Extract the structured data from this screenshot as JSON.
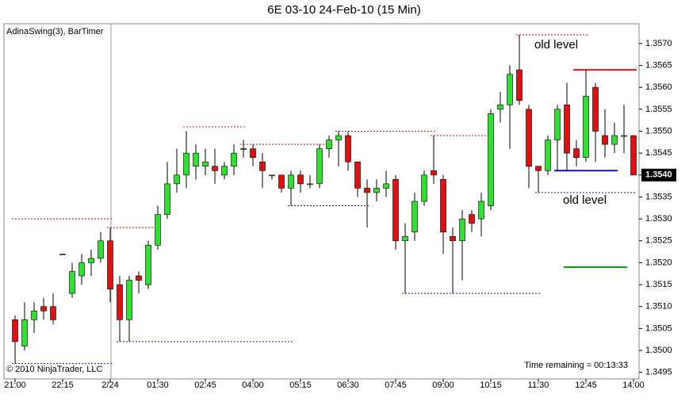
{
  "chart_data": {
    "type": "candlestick",
    "title": "6E 03-10  24-Feb-10 (15 Min)",
    "indicator_label": "AdinaSwing(3), BarTimer",
    "copyright": "© 2010 NinjaTrader, LLC",
    "timer": "Time remaining = 00:13:33",
    "categories": [
      "21:00",
      null,
      null,
      null,
      null,
      "22:15",
      null,
      null,
      null,
      null,
      "2/24",
      null,
      null,
      null,
      null,
      "01:30",
      null,
      null,
      null,
      null,
      "02:45",
      null,
      null,
      null,
      null,
      "04:00",
      null,
      null,
      null,
      null,
      "05:15",
      null,
      null,
      null,
      null,
      "06:30",
      null,
      null,
      null,
      null,
      "07:45",
      null,
      null,
      null,
      null,
      "09:00",
      null,
      null,
      null,
      null,
      "10:15",
      null,
      null,
      null,
      null,
      "11:30",
      null,
      null,
      null,
      null,
      "12:45",
      null,
      null,
      null,
      null,
      "14:00"
    ],
    "open": [
      1.3507,
      1.3501,
      1.3507,
      1.351,
      1.351,
      1.3522,
      1.3513,
      1.3517,
      1.352,
      1.3521,
      1.3525,
      1.3515,
      1.3507,
      1.3517,
      1.3515,
      1.3524,
      1.3531,
      1.3538,
      1.354,
      1.3542,
      1.3542,
      1.3542,
      1.354,
      1.3542,
      1.3546,
      1.3546,
      1.3543,
      1.354,
      1.354,
      1.3537,
      1.354,
      1.3538,
      1.3538,
      1.3546,
      1.3548,
      1.3549,
      1.3543,
      1.3537,
      1.3536,
      1.3537,
      1.3539,
      1.3525,
      1.3527,
      1.3534,
      1.3541,
      1.3539,
      1.3526,
      1.3525,
      1.3531,
      1.353,
      1.3533,
      1.3555,
      1.3556,
      1.3564,
      1.3555,
      1.3542,
      1.3541,
      1.3548,
      1.3556,
      1.3546,
      1.3544,
      1.356,
      1.3549,
      1.3547,
      1.3549,
      1.3549
    ],
    "high": [
      1.3508,
      1.3511,
      1.3511,
      1.3512,
      1.3513,
      1.3522,
      1.352,
      1.3522,
      1.3523,
      1.3527,
      1.3528,
      1.3517,
      1.3517,
      1.3518,
      1.3525,
      1.3533,
      1.3543,
      1.3546,
      1.355,
      1.3547,
      1.3546,
      1.3546,
      1.3543,
      1.3547,
      1.3548,
      1.3547,
      1.3545,
      1.354,
      1.354,
      1.3541,
      1.3541,
      1.354,
      1.3547,
      1.3549,
      1.355,
      1.355,
      1.3543,
      1.3539,
      1.3539,
      1.3541,
      1.354,
      1.3529,
      1.3536,
      1.3541,
      1.3549,
      1.354,
      1.3528,
      1.3532,
      1.3532,
      1.3536,
      1.3555,
      1.3559,
      1.3565,
      1.3572,
      1.3556,
      1.3542,
      1.3549,
      1.3556,
      1.3561,
      1.3548,
      1.3564,
      1.3561,
      1.3555,
      1.3552,
      1.3556,
      1.3549
    ],
    "low": [
      1.3497,
      1.35,
      1.3504,
      1.3507,
      1.3506,
      1.3522,
      1.3512,
      1.3515,
      1.3517,
      1.352,
      1.3511,
      1.3502,
      1.3502,
      1.3513,
      1.3514,
      1.3523,
      1.353,
      1.3536,
      1.3537,
      1.3539,
      1.354,
      1.3538,
      1.3539,
      1.354,
      1.3544,
      1.3542,
      1.3537,
      1.3539,
      1.3536,
      1.3533,
      1.3536,
      1.3537,
      1.3537,
      1.3544,
      1.3542,
      1.3541,
      1.3535,
      1.3528,
      1.3534,
      1.3535,
      1.3523,
      1.3513,
      1.3525,
      1.3533,
      1.3538,
      1.3522,
      1.3513,
      1.3516,
      1.3527,
      1.3526,
      1.3532,
      1.3552,
      1.3546,
      1.3556,
      1.3537,
      1.3536,
      1.354,
      1.3541,
      1.3541,
      1.3542,
      1.3543,
      1.3543,
      1.3544,
      1.3545,
      1.3545,
      1.354
    ],
    "close": [
      1.3502,
      1.3507,
      1.3509,
      1.3509,
      1.3507,
      1.3522,
      1.3518,
      1.352,
      1.3521,
      1.3525,
      1.3514,
      1.3507,
      1.3516,
      1.3516,
      1.3524,
      1.3531,
      1.3538,
      1.354,
      1.3545,
      1.3545,
      1.3543,
      1.3541,
      1.3542,
      1.3545,
      1.3546,
      1.3544,
      1.3541,
      1.354,
      1.3537,
      1.354,
      1.3538,
      1.3538,
      1.3546,
      1.3548,
      1.3549,
      1.3543,
      1.3537,
      1.3536,
      1.3537,
      1.3538,
      1.3525,
      1.3526,
      1.3534,
      1.354,
      1.354,
      1.3527,
      1.3525,
      1.353,
      1.3529,
      1.3534,
      1.3554,
      1.3556,
      1.3563,
      1.3557,
      1.3542,
      1.3541,
      1.3548,
      1.3555,
      1.3545,
      1.3544,
      1.3558,
      1.355,
      1.3547,
      1.3549,
      1.3549,
      1.354
    ],
    "up_color": "#33dd33",
    "down_color": "#dd1111",
    "ylim": [
      1.34935,
      1.35745
    ],
    "yticks": [
      1.3495,
      {
        "value": 1.35,
        "label": "1.3500"
      },
      1.3505,
      {
        "value": 1.351,
        "label": "1.3510"
      },
      1.3515,
      {
        "value": 1.352,
        "label": "1.3520"
      },
      1.3525,
      {
        "value": 1.353,
        "label": "1.3530"
      },
      1.3535,
      {
        "value": 1.354,
        "label": "1.3540"
      },
      1.3545,
      {
        "value": 1.355,
        "label": "1.3550"
      },
      1.3555,
      {
        "value": 1.356,
        "label": "1.3560"
      },
      1.3565,
      {
        "value": 1.357,
        "label": "1.3570"
      }
    ],
    "last_price": 1.354,
    "last_price_label": "1.3540",
    "levels": [
      {
        "value": 1.353,
        "start": 0,
        "end": 10,
        "color": "#dd1111",
        "style": "dashed"
      },
      {
        "value": 1.3528,
        "start": 10,
        "end": 15,
        "color": "#dd1111",
        "style": "dashed"
      },
      {
        "value": 1.3551,
        "start": 18,
        "end": 24,
        "color": "#dd1111",
        "style": "dashed"
      },
      {
        "value": 1.3547,
        "start": 24,
        "end": 33,
        "color": "#dd1111",
        "style": "dashed"
      },
      {
        "value": 1.355,
        "start": 34,
        "end": 44,
        "color": "#dd1111",
        "style": "dashed"
      },
      {
        "value": 1.3549,
        "start": 44,
        "end": 50,
        "color": "#dd1111",
        "style": "dashed"
      },
      {
        "value": 1.3572,
        "start": 53,
        "end": 60,
        "color": "#dd1111",
        "style": "dashed"
      },
      {
        "value": 1.3497,
        "start": 0,
        "end": 10,
        "color": "#1a1aaa",
        "style": "dashed"
      },
      {
        "value": 1.3502,
        "start": 11,
        "end": 29,
        "color": "#1a1aaa",
        "style": "dashed"
      },
      {
        "value": 1.3533,
        "start": 29,
        "end": 37,
        "color": "#1a1aaa",
        "style": "dashed"
      },
      {
        "value": 1.3513,
        "start": 41,
        "end": 55,
        "color": "#1a1aaa",
        "style": "dashed"
      },
      {
        "value": 1.3536,
        "start": 55,
        "end": 65,
        "color": "#1a1aaa",
        "style": "dashed"
      },
      {
        "value": 1.3564,
        "start": 59,
        "end": 65,
        "color": "#ee1111",
        "style": "solid"
      },
      {
        "value": 1.3541,
        "start": 57,
        "end": 63,
        "color": "#1111cc",
        "style": "solid"
      },
      {
        "value": 1.3519,
        "start": 58,
        "end": 64,
        "color": "#119911",
        "style": "solid"
      }
    ],
    "annotations": [
      "old level",
      "old level"
    ]
  }
}
